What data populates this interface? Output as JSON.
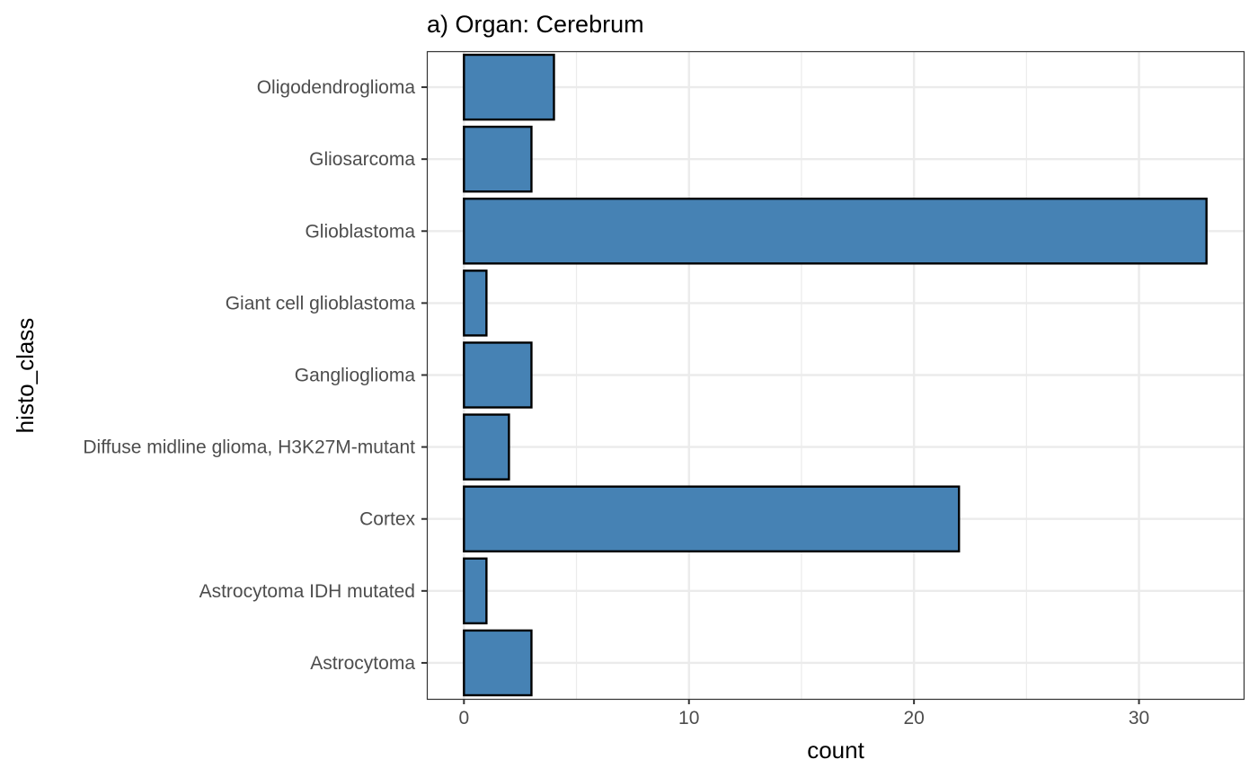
{
  "chart_data": {
    "type": "bar",
    "orientation": "horizontal",
    "title": "a) Organ: Cerebrum",
    "xlabel": "count",
    "ylabel": "histo_class",
    "categories": [
      "Astrocytoma",
      "Astrocytoma IDH mutated",
      "Cortex",
      "Diffuse midline glioma, H3K27M-mutant",
      "Ganglioglioma",
      "Giant cell glioblastoma",
      "Glioblastoma",
      "Gliosarcoma",
      "Oligodendroglioma"
    ],
    "values": [
      3,
      1,
      22,
      2,
      3,
      1,
      33,
      3,
      4
    ],
    "xlim": [
      -1.65,
      34.65
    ],
    "xticks": [
      0,
      10,
      20,
      30
    ],
    "grid": true,
    "bar_fill": "#4682b4",
    "bar_outline": "#000000"
  }
}
